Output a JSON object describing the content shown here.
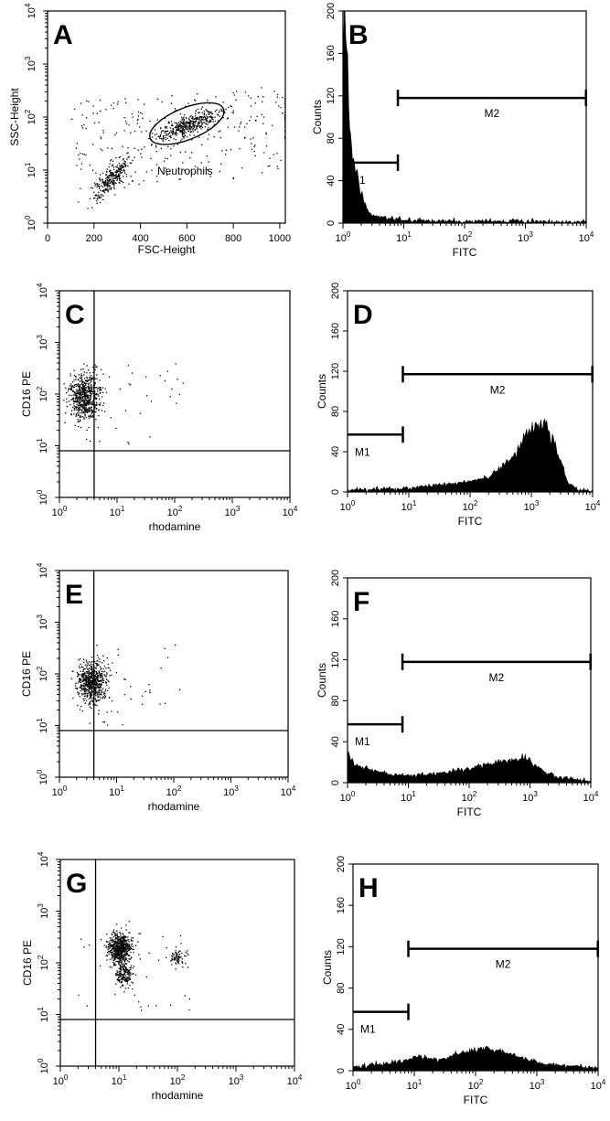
{
  "chart_data": [
    {
      "panel": "A",
      "type": "scatter",
      "xlabel": "FSC-Height",
      "ylabel": "SSC-Height",
      "xlim": [
        0,
        1024
      ],
      "ylim": [
        1,
        10000
      ],
      "yscale": "log",
      "xticks": [
        "0",
        "200",
        "400",
        "600",
        "800",
        "1000"
      ],
      "gate": {
        "label": "Neutrophils",
        "shape": "ellipse",
        "center": [
          600,
          75
        ],
        "x_extent": [
          430,
          770
        ],
        "y_extent": [
          38,
          150
        ]
      },
      "populations": [
        {
          "name": "",
          "x_range": [
            450,
            750
          ],
          "y_range": [
            40,
            150
          ],
          "density": "high"
        },
        {
          "name": "",
          "x_range": [
            200,
            360
          ],
          "y_range": [
            4,
            15
          ],
          "density": "high"
        },
        {
          "name": "",
          "x_range": [
            100,
            1000
          ],
          "y_range": [
            3,
            300
          ],
          "density": "low"
        }
      ]
    },
    {
      "panel": "B",
      "type": "histogram",
      "xlabel": "FITC",
      "ylabel": "Counts",
      "xscale": "log",
      "xlim": [
        1,
        10000
      ],
      "ylim": [
        0,
        200
      ],
      "yticks": [
        0,
        40,
        80,
        120,
        160,
        200
      ],
      "markers": [
        {
          "label": "M1",
          "range": [
            1,
            8
          ],
          "y": 57
        },
        {
          "label": "M2",
          "range": [
            8,
            9900
          ],
          "y": 118
        }
      ],
      "profile": [
        [
          1.0,
          180
        ],
        [
          1.1,
          200
        ],
        [
          1.2,
          130
        ],
        [
          1.4,
          70
        ],
        [
          1.7,
          45
        ],
        [
          2,
          30
        ],
        [
          2.5,
          12
        ],
        [
          3,
          8
        ],
        [
          5,
          5
        ],
        [
          10,
          3
        ],
        [
          100,
          2
        ],
        [
          1000,
          2
        ],
        [
          9999,
          1
        ]
      ]
    },
    {
      "panel": "C",
      "type": "scatter",
      "xlabel": "rhodamine",
      "ylabel": "CD16 PE",
      "xscale": "log",
      "yscale": "log",
      "xlim": [
        1,
        10000
      ],
      "ylim": [
        1,
        10000
      ],
      "quadrant": {
        "x": 4,
        "y": 8
      },
      "populations": [
        {
          "name": "",
          "center": [
            2.7,
            90
          ],
          "spread": [
            0.13,
            0.22
          ],
          "density": "high"
        }
      ]
    },
    {
      "panel": "D",
      "type": "histogram",
      "xlabel": "FITC",
      "ylabel": "Counts",
      "xscale": "log",
      "xlim": [
        1,
        10000
      ],
      "ylim": [
        0,
        200
      ],
      "yticks": [
        0,
        40,
        80,
        120,
        160,
        200
      ],
      "markers": [
        {
          "label": "M1",
          "range": [
            1,
            8
          ],
          "y": 57
        },
        {
          "label": "M2",
          "range": [
            8,
            9900
          ],
          "y": 117
        }
      ],
      "profile": [
        [
          1,
          2
        ],
        [
          10,
          4
        ],
        [
          50,
          8
        ],
        [
          200,
          14
        ],
        [
          500,
          35
        ],
        [
          1000,
          62
        ],
        [
          1500,
          72
        ],
        [
          2500,
          45
        ],
        [
          4000,
          10
        ],
        [
          6000,
          2
        ],
        [
          9999,
          0
        ]
      ]
    },
    {
      "panel": "E",
      "type": "scatter",
      "xlabel": "rhodamine",
      "ylabel": "CD16 PE",
      "xscale": "log",
      "yscale": "log",
      "xlim": [
        1,
        10000
      ],
      "ylim": [
        1,
        10000
      ],
      "quadrant": {
        "x": 4,
        "y": 8
      },
      "populations": [
        {
          "name": "",
          "center": [
            3.5,
            70
          ],
          "spread": [
            0.13,
            0.2
          ],
          "density": "high"
        }
      ]
    },
    {
      "panel": "F",
      "type": "histogram",
      "xlabel": "FITC",
      "ylabel": "Counts",
      "xscale": "log",
      "xlim": [
        1,
        10000
      ],
      "ylim": [
        0,
        200
      ],
      "yticks": [
        0,
        40,
        80,
        120,
        160,
        200
      ],
      "markers": [
        {
          "label": "M1",
          "range": [
            1,
            8
          ],
          "y": 57
        },
        {
          "label": "M2",
          "range": [
            8,
            9900
          ],
          "y": 118
        }
      ],
      "profile": [
        [
          1,
          30
        ],
        [
          1.3,
          18
        ],
        [
          2,
          14
        ],
        [
          3,
          12
        ],
        [
          5,
          8
        ],
        [
          10,
          7
        ],
        [
          30,
          9
        ],
        [
          100,
          14
        ],
        [
          400,
          22
        ],
        [
          800,
          24
        ],
        [
          1500,
          14
        ],
        [
          3000,
          5
        ],
        [
          9999,
          1
        ]
      ]
    },
    {
      "panel": "G",
      "type": "scatter",
      "xlabel": "rhodamine",
      "ylabel": "CD16 PE",
      "xscale": "log",
      "yscale": "log",
      "xlim": [
        1,
        10000
      ],
      "ylim": [
        1,
        10000
      ],
      "quadrant": {
        "x": 4,
        "y": 8
      },
      "populations": [
        {
          "name": "",
          "center": [
            10,
            200
          ],
          "spread": [
            0.1,
            0.14
          ],
          "density": "high"
        },
        {
          "name": "",
          "center": [
            12,
            60
          ],
          "spread": [
            0.08,
            0.1
          ],
          "density": "medium"
        },
        {
          "name": "",
          "center": [
            100,
            130
          ],
          "spread": [
            0.08,
            0.08
          ],
          "density": "low"
        }
      ]
    },
    {
      "panel": "H",
      "type": "histogram",
      "xlabel": "FITC",
      "ylabel": "Counts",
      "xscale": "log",
      "xlim": [
        1,
        10000
      ],
      "ylim": [
        0,
        200
      ],
      "yticks": [
        0,
        40,
        80,
        120,
        160,
        200
      ],
      "markers": [
        {
          "label": "M1",
          "range": [
            1,
            8
          ],
          "y": 57
        },
        {
          "label": "M2",
          "range": [
            8,
            9900
          ],
          "y": 118
        }
      ],
      "profile": [
        [
          1,
          3
        ],
        [
          2,
          6
        ],
        [
          5,
          8
        ],
        [
          12,
          14
        ],
        [
          25,
          10
        ],
        [
          60,
          18
        ],
        [
          150,
          22
        ],
        [
          300,
          18
        ],
        [
          1000,
          8
        ],
        [
          3000,
          5
        ],
        [
          9999,
          3
        ]
      ]
    }
  ]
}
